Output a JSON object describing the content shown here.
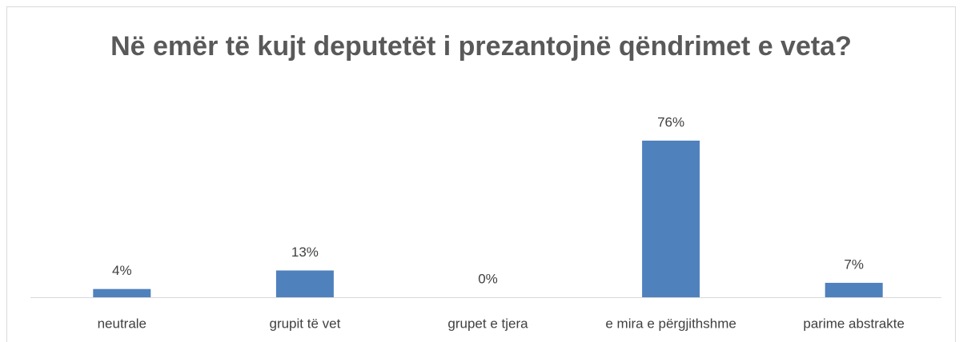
{
  "chart_data": {
    "type": "bar",
    "title": "Në emër të kujt deputetët i prezantojnë qëndrimet e veta?",
    "categories": [
      "neutrale",
      "grupit të vet",
      "grupet e tjera",
      "e mira e përgjithshme",
      "parime abstrakte"
    ],
    "values": [
      4,
      13,
      0,
      76,
      7
    ],
    "value_labels": [
      "4%",
      "13%",
      "0%",
      "76%",
      "7%"
    ],
    "color": "#4f81bd"
  }
}
